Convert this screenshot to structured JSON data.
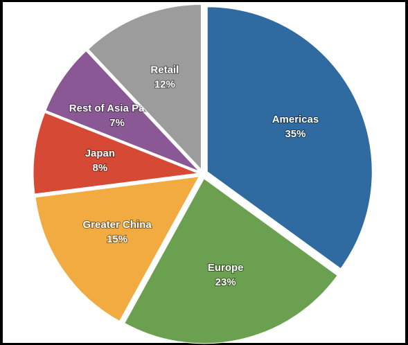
{
  "chart_data": {
    "type": "pie",
    "categories": [
      "Americas",
      "Europe",
      "Greater China",
      "Japan",
      "Rest of Asia Pacific",
      "Retail"
    ],
    "values": [
      35,
      23,
      15,
      8,
      7,
      12
    ],
    "value_labels": [
      "35%",
      "23%",
      "15%",
      "8%",
      "7%",
      "12%"
    ],
    "colors": [
      "#2f6ba1",
      "#6aa04f",
      "#f1ab40",
      "#d64a35",
      "#8a5894",
      "#9c9c9c"
    ]
  }
}
